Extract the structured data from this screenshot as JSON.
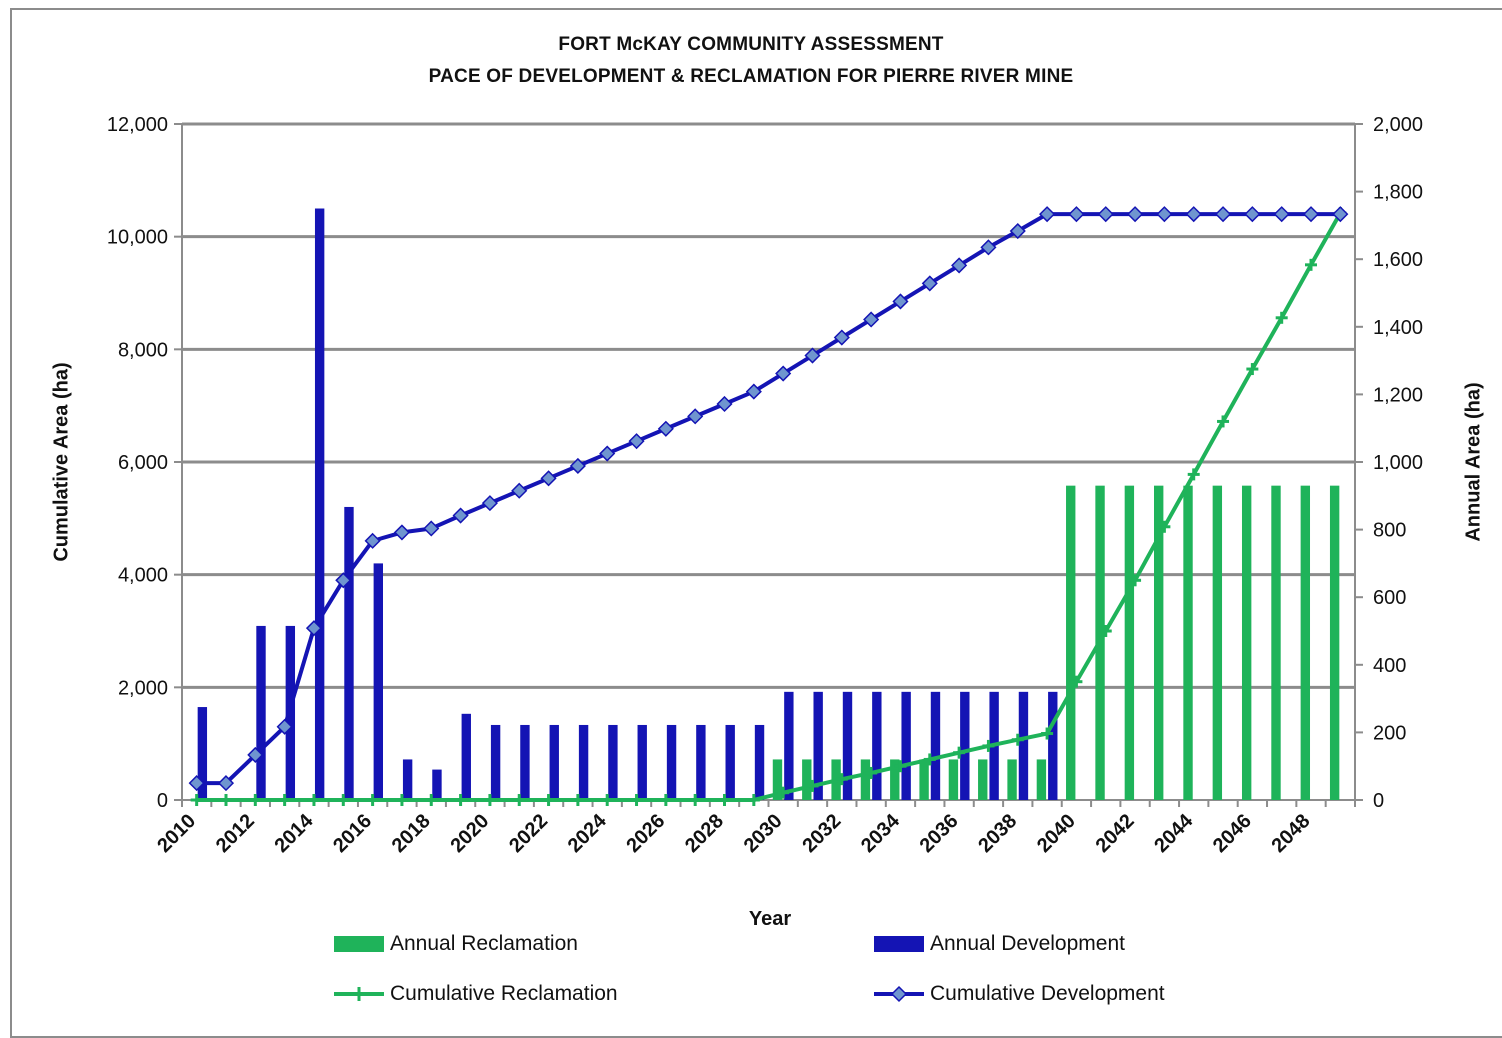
{
  "chart_data": {
    "type": "bar",
    "title": "FORT McKAY COMMUNITY ASSESSMENT",
    "subtitle": "PACE OF DEVELOPMENT  & RECLAMATION FOR PIERRE RIVER MINE",
    "xlabel": "Year",
    "ylabel_left": "Cumulative Area (ha)",
    "ylabel_right": "Annual  Area (ha)",
    "ylim_left": [
      0,
      12000
    ],
    "ylim_right": [
      0,
      2000
    ],
    "yticks_left": [
      "0",
      "2,000",
      "4,000",
      "6,000",
      "8,000",
      "10,000",
      "12,000"
    ],
    "yticks_right": [
      "0",
      "200",
      "400",
      "600",
      "800",
      "1,000",
      "1,200",
      "1,400",
      "1,600",
      "1,800",
      "2,000"
    ],
    "x_tick_labels": [
      "2010",
      "2012",
      "2014",
      "2016",
      "2018",
      "2020",
      "2022",
      "2024",
      "2026",
      "2028",
      "2030",
      "2032",
      "2034",
      "2036",
      "2038",
      "2040",
      "2042",
      "2044",
      "2046",
      "2048"
    ],
    "grid": true,
    "legend_position": "bottom",
    "years": [
      2010,
      2011,
      2012,
      2013,
      2014,
      2015,
      2016,
      2017,
      2018,
      2019,
      2020,
      2021,
      2022,
      2023,
      2024,
      2025,
      2026,
      2027,
      2028,
      2029,
      2030,
      2031,
      2032,
      2033,
      2034,
      2035,
      2036,
      2037,
      2038,
      2039,
      2040,
      2041,
      2042,
      2043,
      2044,
      2045,
      2046,
      2047,
      2048,
      2049
    ],
    "series": [
      {
        "name": "Annual  Reclamation",
        "kind": "bar",
        "axis": "right",
        "color": "#1fb35a",
        "values": [
          0,
          0,
          0,
          0,
          0,
          0,
          0,
          0,
          0,
          0,
          0,
          0,
          0,
          0,
          0,
          0,
          0,
          0,
          0,
          0,
          120,
          120,
          120,
          120,
          120,
          120,
          120,
          120,
          120,
          120,
          930,
          930,
          930,
          930,
          930,
          930,
          930,
          930,
          930,
          930
        ]
      },
      {
        "name": "Annual Development",
        "kind": "bar",
        "axis": "right",
        "color": "#1414b4",
        "values": [
          275,
          0,
          515,
          515,
          1750,
          867,
          700,
          120,
          90,
          255,
          222,
          222,
          222,
          222,
          222,
          222,
          222,
          222,
          222,
          222,
          320,
          320,
          320,
          320,
          320,
          320,
          320,
          320,
          320,
          320,
          0,
          0,
          0,
          0,
          0,
          0,
          0,
          0,
          0,
          0
        ]
      },
      {
        "name": "Cumulative Reclamation",
        "kind": "line",
        "axis": "left",
        "color": "#1fb35a",
        "marker": "plus",
        "values": [
          0,
          0,
          0,
          0,
          0,
          0,
          0,
          0,
          0,
          0,
          0,
          0,
          0,
          0,
          0,
          0,
          0,
          0,
          0,
          0,
          130,
          250,
          370,
          480,
          600,
          720,
          840,
          960,
          1070,
          1180,
          2100,
          3000,
          3900,
          4850,
          5780,
          6720,
          7650,
          8560,
          9500,
          10420
        ]
      },
      {
        "name": "Cumulative Development",
        "kind": "line",
        "axis": "left",
        "color": "#1414b4",
        "marker": "diamond",
        "values": [
          300,
          300,
          800,
          1300,
          3050,
          3900,
          4600,
          4750,
          4820,
          5050,
          5270,
          5490,
          5710,
          5930,
          6150,
          6370,
          6590,
          6810,
          7030,
          7250,
          7570,
          7890,
          8210,
          8530,
          8850,
          9170,
          9490,
          9810,
          10100,
          10400,
          10400,
          10400,
          10400,
          10400,
          10400,
          10400,
          10400,
          10400,
          10400,
          10400
        ]
      }
    ]
  }
}
